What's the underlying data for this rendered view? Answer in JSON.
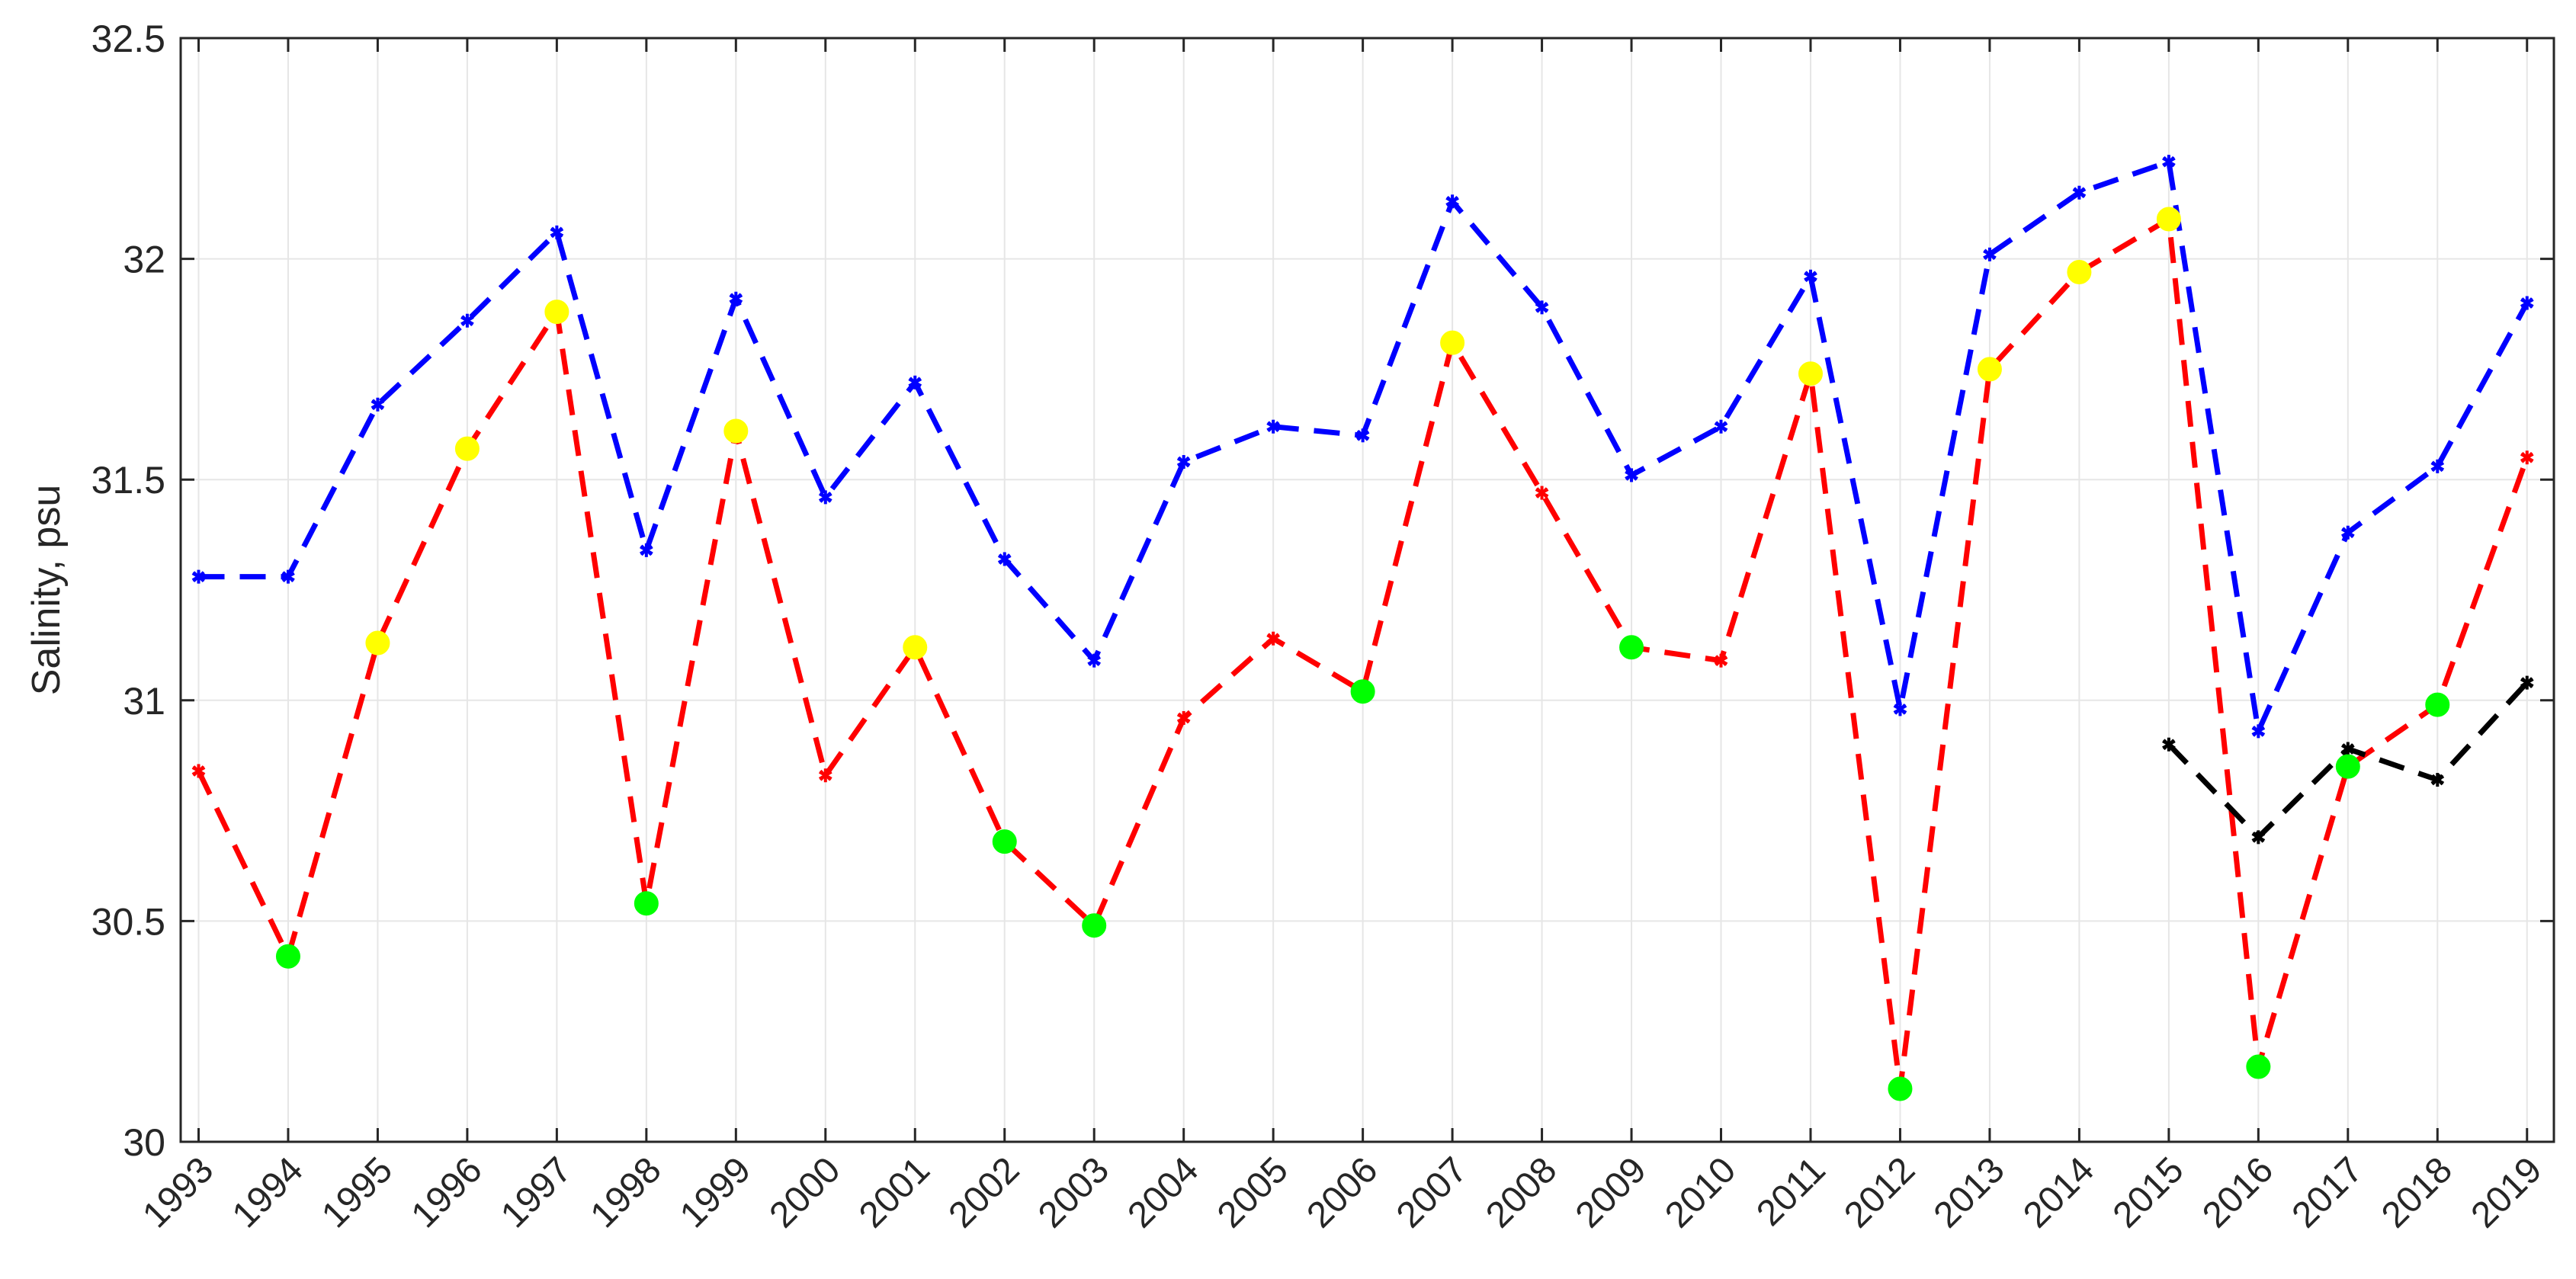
{
  "chart_data": {
    "type": "line",
    "title": "",
    "xlabel": "",
    "ylabel": "Salinity, psu",
    "xlim": [
      1992.8,
      2019.3
    ],
    "ylim": [
      30,
      32.5
    ],
    "yticks": [
      "30",
      "30.5",
      "31",
      "31.5",
      "32",
      "32.5"
    ],
    "xticks": [
      "1993",
      "1994",
      "1995",
      "1996",
      "1997",
      "1998",
      "1999",
      "2000",
      "2001",
      "2002",
      "2003",
      "2004",
      "2005",
      "2006",
      "2007",
      "2008",
      "2009",
      "2010",
      "2011",
      "2012",
      "2013",
      "2014",
      "2015",
      "2016",
      "2017",
      "2018",
      "2019"
    ],
    "grid": true,
    "legend": false,
    "series": [
      {
        "color": "#0000ff",
        "line": "dashed",
        "marker": "asterisk",
        "x": [
          1993,
          1994,
          1995,
          1996,
          1997,
          1998,
          1999,
          2000,
          2001,
          2002,
          2003,
          2004,
          2005,
          2006,
          2007,
          2008,
          2009,
          2010,
          2011,
          2012,
          2013,
          2014,
          2015,
          2016,
          2017,
          2018,
          2019
        ],
        "values": [
          31.28,
          31.28,
          31.67,
          31.86,
          32.06,
          31.34,
          31.91,
          31.46,
          31.72,
          31.32,
          31.09,
          31.54,
          31.62,
          31.6,
          32.13,
          31.89,
          31.51,
          31.62,
          31.96,
          30.98,
          32.01,
          32.15,
          32.22,
          30.93,
          31.38,
          31.53,
          31.9
        ]
      },
      {
        "color": "#ff0000",
        "line": "dashed",
        "marker": "asterisk",
        "x": [
          1993,
          1994,
          1995,
          1996,
          1997,
          1998,
          1999,
          2000,
          2001,
          2002,
          2003,
          2004,
          2005,
          2006,
          2007,
          2008,
          2009,
          2010,
          2011,
          2012,
          2013,
          2014,
          2015,
          2016,
          2017,
          2018,
          2019
        ],
        "values": [
          30.84,
          30.42,
          31.13,
          31.57,
          31.88,
          30.54,
          31.61,
          30.83,
          31.12,
          30.68,
          30.49,
          30.96,
          31.14,
          31.02,
          31.81,
          31.47,
          31.12,
          31.09,
          31.74,
          30.12,
          31.75,
          31.97,
          32.09,
          30.17,
          30.85,
          30.99,
          31.55
        ]
      },
      {
        "color": "#000000",
        "line": "dashed",
        "marker": "asterisk",
        "x": [
          2015,
          2016,
          2017,
          2018,
          2019
        ],
        "values": [
          30.9,
          30.69,
          30.89,
          30.82,
          31.04
        ]
      }
    ],
    "highlights": [
      {
        "color": "#00ff00",
        "marker": "filled-circle",
        "x": [
          1994,
          1998,
          2002,
          2003,
          2006,
          2009,
          2012,
          2016,
          2017,
          2018
        ],
        "values": [
          30.42,
          30.54,
          30.68,
          30.49,
          31.02,
          31.12,
          30.12,
          30.17,
          30.85,
          30.99
        ]
      },
      {
        "color": "#ffff00",
        "marker": "filled-circle",
        "x": [
          1995,
          1996,
          1997,
          1999,
          2001,
          2007,
          2011,
          2013,
          2014,
          2015
        ],
        "values": [
          31.13,
          31.57,
          31.88,
          31.61,
          31.12,
          31.81,
          31.74,
          31.75,
          31.97,
          32.09
        ]
      }
    ]
  }
}
